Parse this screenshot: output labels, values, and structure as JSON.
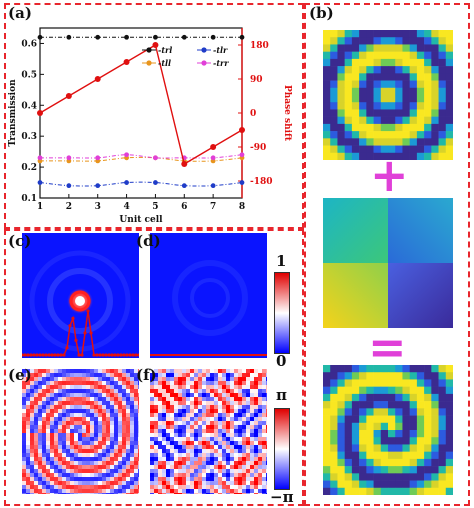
{
  "panels": {
    "a": {
      "label": "(a)"
    },
    "b": {
      "label": "(b)"
    },
    "c": {
      "label": "(c)"
    },
    "d": {
      "label": "(d)"
    },
    "e": {
      "label": "(e)"
    },
    "f": {
      "label": "(f)"
    }
  },
  "chart_data": {
    "type": "line",
    "xlabel": "Unit cell",
    "ylabel": "Transmission",
    "y2label": "Phase shift",
    "x": [
      1,
      2,
      3,
      4,
      5,
      6,
      7,
      8
    ],
    "xlim": [
      1,
      8
    ],
    "ylim": [
      0.1,
      0.65
    ],
    "yticks": [
      0.1,
      0.2,
      0.3,
      0.4,
      0.5,
      0.6
    ],
    "y2lim": [
      -225,
      225
    ],
    "y2ticks": [
      -180,
      -90,
      0,
      90,
      180
    ],
    "grid": false,
    "legend_position": "upper-right",
    "series": [
      {
        "name": "trl",
        "axis": "left",
        "color": "#111111",
        "marker": "circle",
        "values": [
          0.62,
          0.62,
          0.62,
          0.62,
          0.62,
          0.62,
          0.62,
          0.62
        ]
      },
      {
        "name": "tlr",
        "axis": "left",
        "color": "#1f3cc8",
        "marker": "circle",
        "values": [
          0.15,
          0.14,
          0.14,
          0.15,
          0.15,
          0.14,
          0.14,
          0.15
        ]
      },
      {
        "name": "tll",
        "axis": "left",
        "color": "#e8951c",
        "marker": "circle",
        "values": [
          0.22,
          0.22,
          0.22,
          0.23,
          0.23,
          0.22,
          0.22,
          0.23
        ]
      },
      {
        "name": "trr",
        "axis": "left",
        "color": "#e13fd8",
        "marker": "circle",
        "values": [
          0.23,
          0.23,
          0.23,
          0.24,
          0.23,
          0.23,
          0.23,
          0.24
        ]
      },
      {
        "name": "Phase shift",
        "axis": "right",
        "color": "#e01010",
        "marker": "circle",
        "values": [
          0,
          45,
          90,
          135,
          180,
          -135,
          -90,
          -45
        ]
      }
    ]
  },
  "colorbars": {
    "intensity": {
      "max_label": "1",
      "min_label": "0",
      "colors": [
        "#0000ff",
        "#ffffff",
        "#e00000"
      ]
    },
    "phase": {
      "max_label": "π",
      "min_label": "−π",
      "colors": [
        "#0000ff",
        "#ffffff",
        "#e00000"
      ]
    }
  },
  "operators": {
    "plus": "+",
    "equals": "="
  },
  "colors": {
    "frame": "#e8262d",
    "operator": "#e040d8"
  }
}
